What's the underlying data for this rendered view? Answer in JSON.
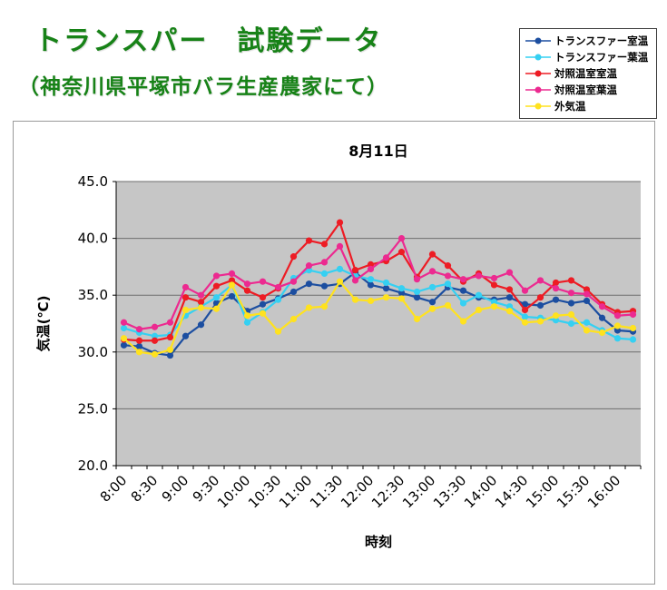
{
  "page": {
    "title": "トランスパー　試験データ",
    "subtitle": "（神奈川県平塚市バラ生産農家にて）",
    "title_color": "#178217"
  },
  "chart_data": {
    "type": "line",
    "title": "8月11日",
    "xlabel": "時刻",
    "ylabel": "気温(℃)",
    "ylim": [
      20.0,
      45.0
    ],
    "ytick_step": 5.0,
    "ytick_labels": [
      "45.0",
      "40.0",
      "35.0",
      "30.0",
      "25.0",
      "20.0"
    ],
    "grid": "horizontal-only",
    "plot_bg": "#c6c6c6",
    "gridline_color": "#6e6e6e",
    "legend_position": "top-right-outside",
    "x_label_every_n": 2,
    "x_axis_shown_labels": [
      "8:00",
      "8:30",
      "9:00",
      "9:30",
      "10:00",
      "10:30",
      "11:00",
      "11:30",
      "12:00",
      "12:30",
      "13:00",
      "13:30",
      "14:00",
      "14:30",
      "15:00",
      "15:30",
      "16:00"
    ],
    "categories": [
      "8:00",
      "8:15",
      "8:30",
      "8:45",
      "9:00",
      "9:15",
      "9:30",
      "9:45",
      "10:00",
      "10:15",
      "10:30",
      "10:45",
      "11:00",
      "11:15",
      "11:30",
      "11:45",
      "12:00",
      "12:15",
      "12:30",
      "12:45",
      "13:00",
      "13:15",
      "13:30",
      "13:45",
      "14:00",
      "14:15",
      "14:30",
      "14:45",
      "15:00",
      "15:15",
      "15:30",
      "15:45",
      "16:00",
      "16:15"
    ],
    "series": [
      {
        "name": "トランスファー室温",
        "color": "#1c4ea0",
        "values": [
          30.6,
          30.5,
          29.9,
          29.7,
          31.4,
          32.4,
          34.3,
          34.9,
          33.6,
          34.2,
          34.7,
          35.3,
          36.0,
          35.8,
          36.0,
          37.0,
          35.9,
          35.6,
          35.2,
          34.8,
          34.4,
          35.7,
          35.4,
          34.8,
          34.6,
          34.8,
          34.2,
          34.1,
          34.6,
          34.3,
          34.5,
          33.0,
          31.9,
          31.8
        ]
      },
      {
        "name": "トランスファー葉温",
        "color": "#35d0f2",
        "values": [
          32.1,
          31.7,
          31.4,
          31.5,
          33.2,
          34.0,
          34.8,
          35.9,
          32.6,
          33.5,
          34.6,
          36.5,
          37.2,
          36.9,
          37.3,
          36.7,
          36.4,
          36.1,
          35.6,
          35.3,
          35.7,
          36.0,
          34.3,
          35.0,
          34.4,
          34.0,
          33.1,
          33.0,
          32.8,
          32.5,
          32.6,
          31.9,
          31.2,
          31.1
        ]
      },
      {
        "name": "対照温室室温",
        "color": "#ed1c24",
        "values": [
          31.1,
          31.0,
          31.0,
          31.3,
          34.8,
          34.4,
          35.8,
          36.3,
          35.4,
          34.8,
          35.6,
          38.4,
          39.8,
          39.5,
          41.4,
          37.2,
          37.7,
          38.0,
          38.8,
          36.6,
          38.6,
          37.6,
          36.2,
          36.9,
          35.9,
          35.5,
          33.7,
          34.8,
          36.1,
          36.3,
          35.5,
          34.2,
          33.5,
          33.6
        ]
      },
      {
        "name": "対照温室葉温",
        "color": "#ec2a90",
        "values": [
          32.6,
          32.0,
          32.2,
          32.6,
          35.7,
          35.0,
          36.7,
          36.9,
          36.0,
          36.2,
          35.7,
          36.2,
          37.6,
          37.9,
          39.3,
          36.3,
          37.3,
          38.3,
          40.0,
          36.4,
          37.1,
          36.7,
          36.4,
          36.7,
          36.5,
          37.0,
          35.4,
          36.3,
          35.6,
          35.2,
          35.1,
          34.0,
          33.2,
          33.3
        ]
      },
      {
        "name": "外気温",
        "color": "#ffe21f",
        "values": [
          31.2,
          30.0,
          29.8,
          30.2,
          33.7,
          33.9,
          33.8,
          35.9,
          33.2,
          33.4,
          31.8,
          32.9,
          33.9,
          34.0,
          36.2,
          34.6,
          34.5,
          34.8,
          34.7,
          32.9,
          33.8,
          34.1,
          32.7,
          33.7,
          34.0,
          33.6,
          32.6,
          32.7,
          33.2,
          33.3,
          31.9,
          31.7,
          32.3,
          32.1
        ]
      }
    ]
  }
}
